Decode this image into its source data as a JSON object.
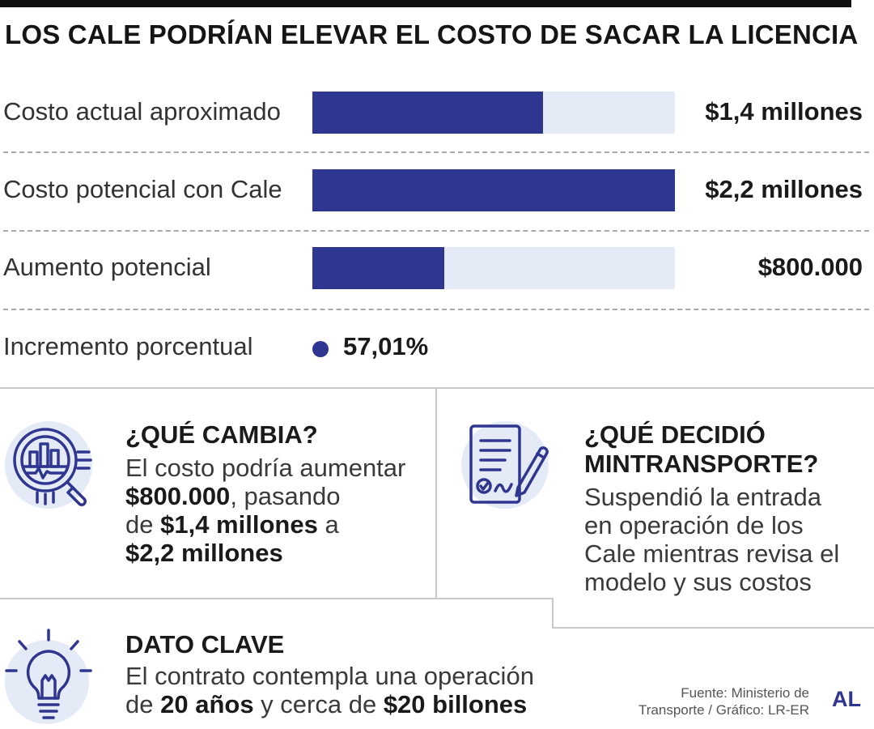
{
  "title": "LOS CALE PODRÍAN ELEVAR EL COSTO DE SACAR LA LICENCIA",
  "chart_data": {
    "type": "bar",
    "orientation": "horizontal",
    "categories": [
      "Costo actual aproximado",
      "Costo potencial con Cale",
      "Aumento potencial"
    ],
    "values": [
      1400000,
      2200000,
      800000
    ],
    "value_labels": [
      "$1,4 millones",
      "$2,2 millones",
      "$800.000"
    ],
    "xlim": [
      0,
      2200000
    ],
    "bar_color": "#2e3690",
    "track_color": "#e4ebf6",
    "extra": {
      "label": "Incremento porcentual",
      "value": 57.01,
      "value_label": "57,01%"
    }
  },
  "cards": {
    "que_cambia": {
      "title": "¿QUÉ CAMBIA?",
      "body": [
        [
          {
            "t": "El costo podría aumentar",
            "b": false
          }
        ],
        [
          {
            "t": "$800.000",
            "b": true
          },
          {
            "t": ", pasando",
            "b": false
          }
        ],
        [
          {
            "t": "de ",
            "b": false
          },
          {
            "t": "$1,4 millones",
            "b": true
          },
          {
            "t": " a",
            "b": false
          }
        ],
        [
          {
            "t": "$2,2 millones",
            "b": true
          }
        ]
      ]
    },
    "que_decidio": {
      "title_lines": [
        "¿QUÉ DECIDIÓ",
        "MINTRANSPORTE?"
      ],
      "body": [
        [
          {
            "t": "Suspendió la entrada",
            "b": false
          }
        ],
        [
          {
            "t": "en operación de los",
            "b": false
          }
        ],
        [
          {
            "t": "Cale mientras revisa el",
            "b": false
          }
        ],
        [
          {
            "t": "modelo y sus costos",
            "b": false
          }
        ]
      ]
    },
    "dato_clave": {
      "title": "DATO CLAVE",
      "body": [
        [
          {
            "t": "El contrato contempla una operación",
            "b": false
          }
        ],
        [
          {
            "t": "de ",
            "b": false
          },
          {
            "t": "20 años",
            "b": true
          },
          {
            "t": " y cerca de ",
            "b": false
          },
          {
            "t": "$20 billones",
            "b": true
          }
        ]
      ]
    }
  },
  "source": {
    "line1": "Fuente: Ministerio de",
    "line2": "Transporte / Gráfico: LR-ER"
  },
  "logo": "AL",
  "icons": {
    "que_cambia": "magnifier-chart-icon",
    "que_decidio": "document-signature-icon",
    "dato_clave": "lightbulb-icon"
  }
}
